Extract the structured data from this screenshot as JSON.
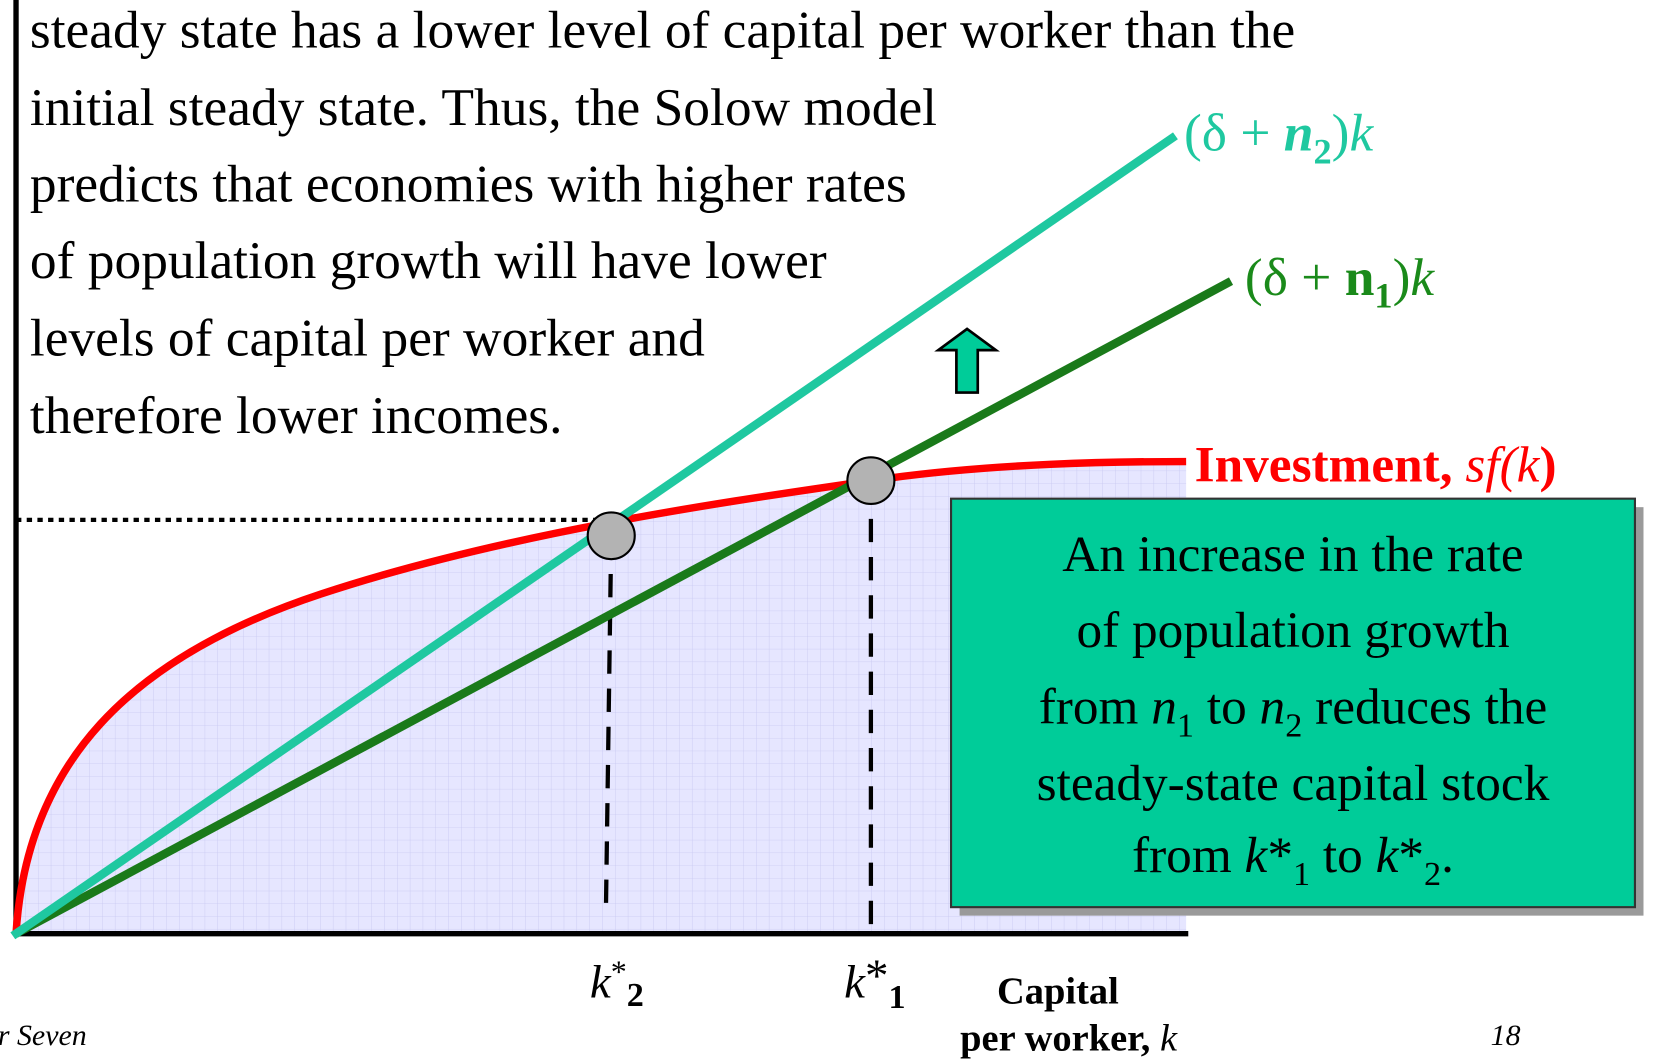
{
  "text_lines": [
    "steady state has a lower level of capital per worker than the",
    "initial steady state. Thus, the Solow model",
    "predicts that economies with higher rates",
    "of population growth will have lower",
    "levels of capital per worker and",
    "therefore lower incomes."
  ],
  "n2_line": [
    "(δ + ",
    "n",
    "2",
    ")",
    "k"
  ],
  "n1_line": [
    "(δ + ",
    "n",
    "1",
    ")",
    "k"
  ],
  "investment": [
    "Investment, ",
    "sf(",
    "k",
    ")"
  ],
  "callout": [
    [
      "An increase in the rate"
    ],
    [
      "of population growth"
    ],
    [
      "from ",
      "n",
      "1",
      " to ",
      "n",
      "2",
      " reduces the"
    ],
    [
      "steady-state capital stock"
    ],
    [
      "from ",
      "k",
      "*",
      "1",
      " to ",
      "k",
      "*",
      "2",
      "."
    ]
  ],
  "k2": [
    "k",
    "*",
    "2"
  ],
  "k1": [
    "k",
    "*",
    "1"
  ],
  "axis_label": [
    "Capital",
    "per worker, ",
    "k"
  ],
  "footer": "r Seven",
  "page": "18"
}
